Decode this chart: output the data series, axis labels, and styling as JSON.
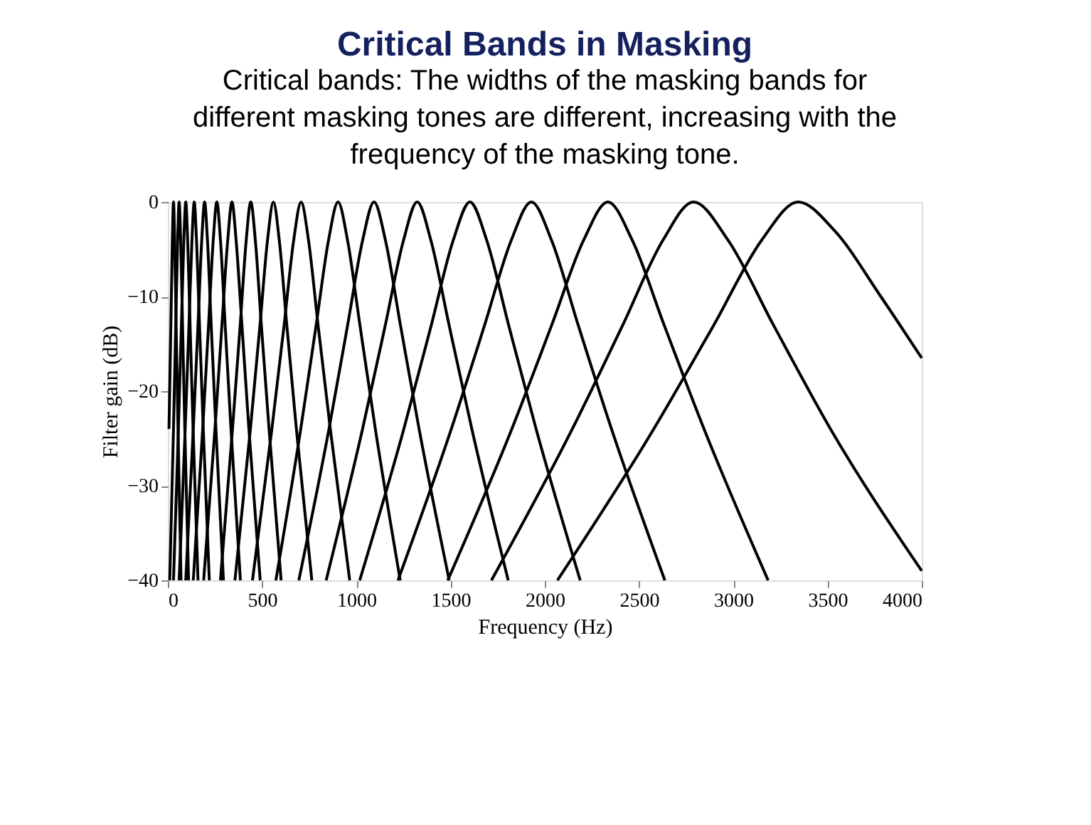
{
  "chart_data": {
    "type": "line",
    "title": "Critical Bands in Masking",
    "subtitle": "Critical bands: The widths of the masking bands for different masking tones are different, increasing with the frequency of the masking tone.",
    "xlabel": "Frequency (Hz)",
    "ylabel": "Filter gain (dB)",
    "xlim": [
      0,
      4000
    ],
    "xticks": [
      0,
      500,
      1000,
      1500,
      2000,
      2500,
      3000,
      3500,
      4000
    ],
    "ylim": [
      -40,
      0
    ],
    "yticks": [
      -40,
      -30,
      -20,
      -10,
      0
    ],
    "grid": false,
    "line_style": "solid",
    "marker": "none",
    "series": [
      {
        "color": "#000000",
        "x": [
          2067,
          2578,
          2897,
          3152,
          3344,
          3536,
          3783,
          4000
        ],
        "values": [
          -40,
          -24,
          -13,
          -4,
          0,
          -3,
          -10,
          -16.5
        ]
      },
      {
        "color": "#000000",
        "x": [
          1717,
          2146,
          2414,
          2628,
          2789,
          2971,
          3213,
          3516,
          4000
        ],
        "values": [
          -40,
          -24,
          -13,
          -4,
          0,
          -4,
          -13,
          -24,
          -39
        ]
      },
      {
        "color": "#000000",
        "x": [
          1485,
          1825,
          2037,
          2207,
          2335,
          2463,
          2633,
          2845,
          3185
        ],
        "values": [
          -40,
          -24,
          -13,
          -4,
          0,
          -4,
          -13,
          -24,
          -40
        ]
      },
      {
        "color": "#000000",
        "x": [
          1221,
          1504,
          1681,
          1823,
          1929,
          2035,
          2177,
          2354,
          2637
        ],
        "values": [
          -40,
          -24,
          -13,
          -4,
          0,
          -4,
          -13,
          -24,
          -40
        ]
      },
      {
        "color": "#000000",
        "x": [
          1018,
          1252,
          1398,
          1515,
          1603,
          1691,
          1808,
          1954,
          2188
        ],
        "values": [
          -40,
          -24,
          -13,
          -4,
          0,
          -4,
          -13,
          -24,
          -40
        ]
      },
      {
        "color": "#000000",
        "x": [
          840,
          1033,
          1154,
          1251,
          1323,
          1395,
          1492,
          1613,
          1806
        ],
        "values": [
          -40,
          -24,
          -13,
          -4,
          0,
          -4,
          -13,
          -24,
          -40
        ]
      },
      {
        "color": "#000000",
        "x": [
          695,
          855,
          954,
          1034,
          1094,
          1154,
          1234,
          1333,
          1493
        ],
        "values": [
          -40,
          -24,
          -13,
          -4,
          0,
          -4,
          -13,
          -24,
          -40
        ]
      },
      {
        "color": "#000000",
        "x": [
          573,
          705,
          787,
          853,
          903,
          953,
          1019,
          1101,
          1233
        ],
        "values": [
          -40,
          -24,
          -13,
          -4,
          0,
          -4,
          -13,
          -24,
          -40
        ]
      },
      {
        "color": "#000000",
        "x": [
          449,
          552,
          617,
          668,
          707,
          746,
          797,
          862,
          965
        ],
        "values": [
          -40,
          -24,
          -13,
          -4,
          0,
          -4,
          -13,
          -24,
          -40
        ]
      },
      {
        "color": "#000000",
        "x": [
          356,
          438,
          489,
          529,
          560,
          591,
          631,
          682,
          764
        ],
        "values": [
          -40,
          -24,
          -13,
          -4,
          0,
          -4,
          -13,
          -24,
          -40
        ]
      },
      {
        "color": "#000000",
        "x": [
          279,
          343,
          384,
          416,
          440,
          464,
          496,
          537,
          601
        ],
        "values": [
          -40,
          -24,
          -13,
          -4,
          0,
          -4,
          -13,
          -24,
          -40
        ]
      },
      {
        "color": "#000000",
        "x": [
          190,
          250,
          287,
          318,
          340,
          362,
          393,
          430,
          490
        ],
        "values": [
          -40,
          -24,
          -13,
          -4,
          0,
          -4,
          -13,
          -24,
          -40
        ]
      },
      {
        "color": "#000000",
        "x": [
          135,
          185,
          216,
          241,
          260,
          279,
          304,
          335,
          385
        ],
        "values": [
          -40,
          -24,
          -13,
          -4,
          0,
          -4,
          -13,
          -24,
          -40
        ]
      },
      {
        "color": "#000000",
        "x": [
          95,
          135,
          160,
          180,
          195,
          210,
          230,
          255,
          295
        ],
        "values": [
          -40,
          -24,
          -13,
          -4,
          0,
          -4,
          -13,
          -24,
          -40
        ]
      },
      {
        "color": "#000000",
        "x": [
          60,
          92,
          112,
          128,
          140,
          152,
          168,
          188,
          220
        ],
        "values": [
          -40,
          -24,
          -13,
          -4,
          0,
          -4,
          -13,
          -24,
          -40
        ]
      },
      {
        "color": "#000000",
        "x": [
          30,
          56,
          72,
          85,
          95,
          105,
          118,
          134,
          160
        ],
        "values": [
          -40,
          -24,
          -13,
          -4,
          0,
          -4,
          -13,
          -24,
          -40
        ]
      },
      {
        "color": "#000000",
        "x": [
          10,
          30,
          42,
          52,
          60,
          68,
          78,
          90,
          110
        ],
        "values": [
          -40,
          -24,
          -13,
          -4,
          0,
          -4,
          -13,
          -24,
          -40
        ]
      },
      {
        "color": "#000000",
        "x": [
          6,
          16,
          24,
          30,
          36,
          44,
          54,
          70
        ],
        "values": [
          -24,
          -13,
          -4,
          0,
          -4,
          -13,
          -24,
          -40
        ]
      }
    ]
  }
}
